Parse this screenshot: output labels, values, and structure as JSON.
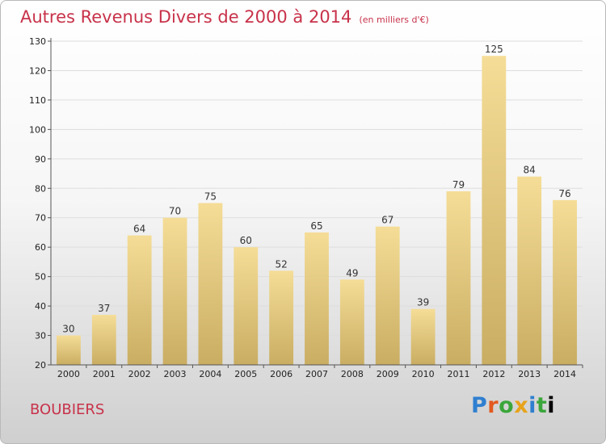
{
  "title": "Autres Revenus Divers de 2000 à 2014",
  "subtitle": "(en milliers d'€)",
  "place_name": "BOUBIERS",
  "logo_text": "Proxiti",
  "colors": {
    "title": "#c8324a",
    "bar_light": "#f5dd97",
    "bar_dark": "#c9ad62",
    "grid": "#dddddd"
  },
  "chart_data": {
    "type": "bar",
    "categories": [
      "2000",
      "2001",
      "2002",
      "2003",
      "2004",
      "2005",
      "2006",
      "2007",
      "2008",
      "2009",
      "2010",
      "2011",
      "2012",
      "2013",
      "2014"
    ],
    "values": [
      30,
      37,
      64,
      70,
      75,
      60,
      52,
      65,
      49,
      67,
      39,
      79,
      125,
      84,
      76
    ],
    "ylim": [
      20,
      130
    ],
    "yticks": [
      20,
      30,
      40,
      50,
      60,
      70,
      80,
      90,
      100,
      110,
      120,
      130
    ],
    "grid": true,
    "legend": "none"
  }
}
